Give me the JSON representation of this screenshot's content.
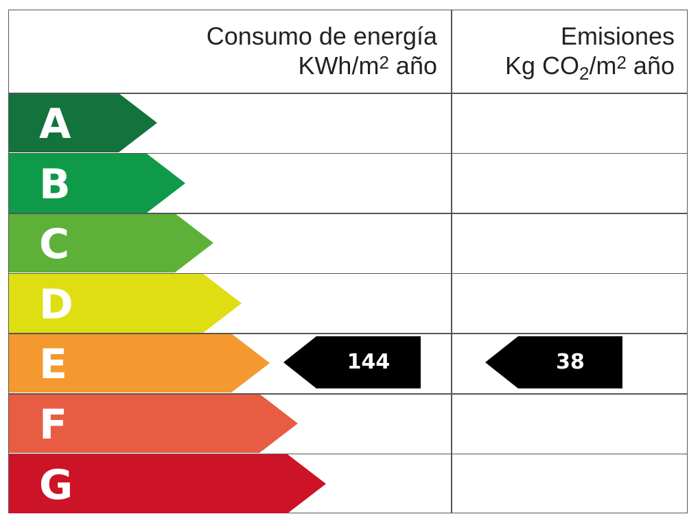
{
  "header": {
    "energy_line1": "Consumo de energía",
    "energy_line2_pre": "KWh/m",
    "energy_line2_sup": "2",
    "energy_line2_post": " año",
    "emissions_line1": "Emisiones",
    "emissions_line2_pre": "Kg CO",
    "emissions_line2_sub": "2",
    "emissions_line2_mid": "/m",
    "emissions_line2_sup": "2",
    "emissions_line2_post": " año"
  },
  "ratings": [
    {
      "letter": "A",
      "color": "#13733c"
    },
    {
      "letter": "B",
      "color": "#0e9a48"
    },
    {
      "letter": "C",
      "color": "#5db138"
    },
    {
      "letter": "D",
      "color": "#dede12"
    },
    {
      "letter": "E",
      "color": "#f3992f"
    },
    {
      "letter": "F",
      "color": "#e85c43"
    },
    {
      "letter": "G",
      "color": "#cd1327"
    }
  ],
  "indicators": {
    "energy_value": "144",
    "emissions_value": "38",
    "row_letter": "E",
    "color": "#000000"
  }
}
